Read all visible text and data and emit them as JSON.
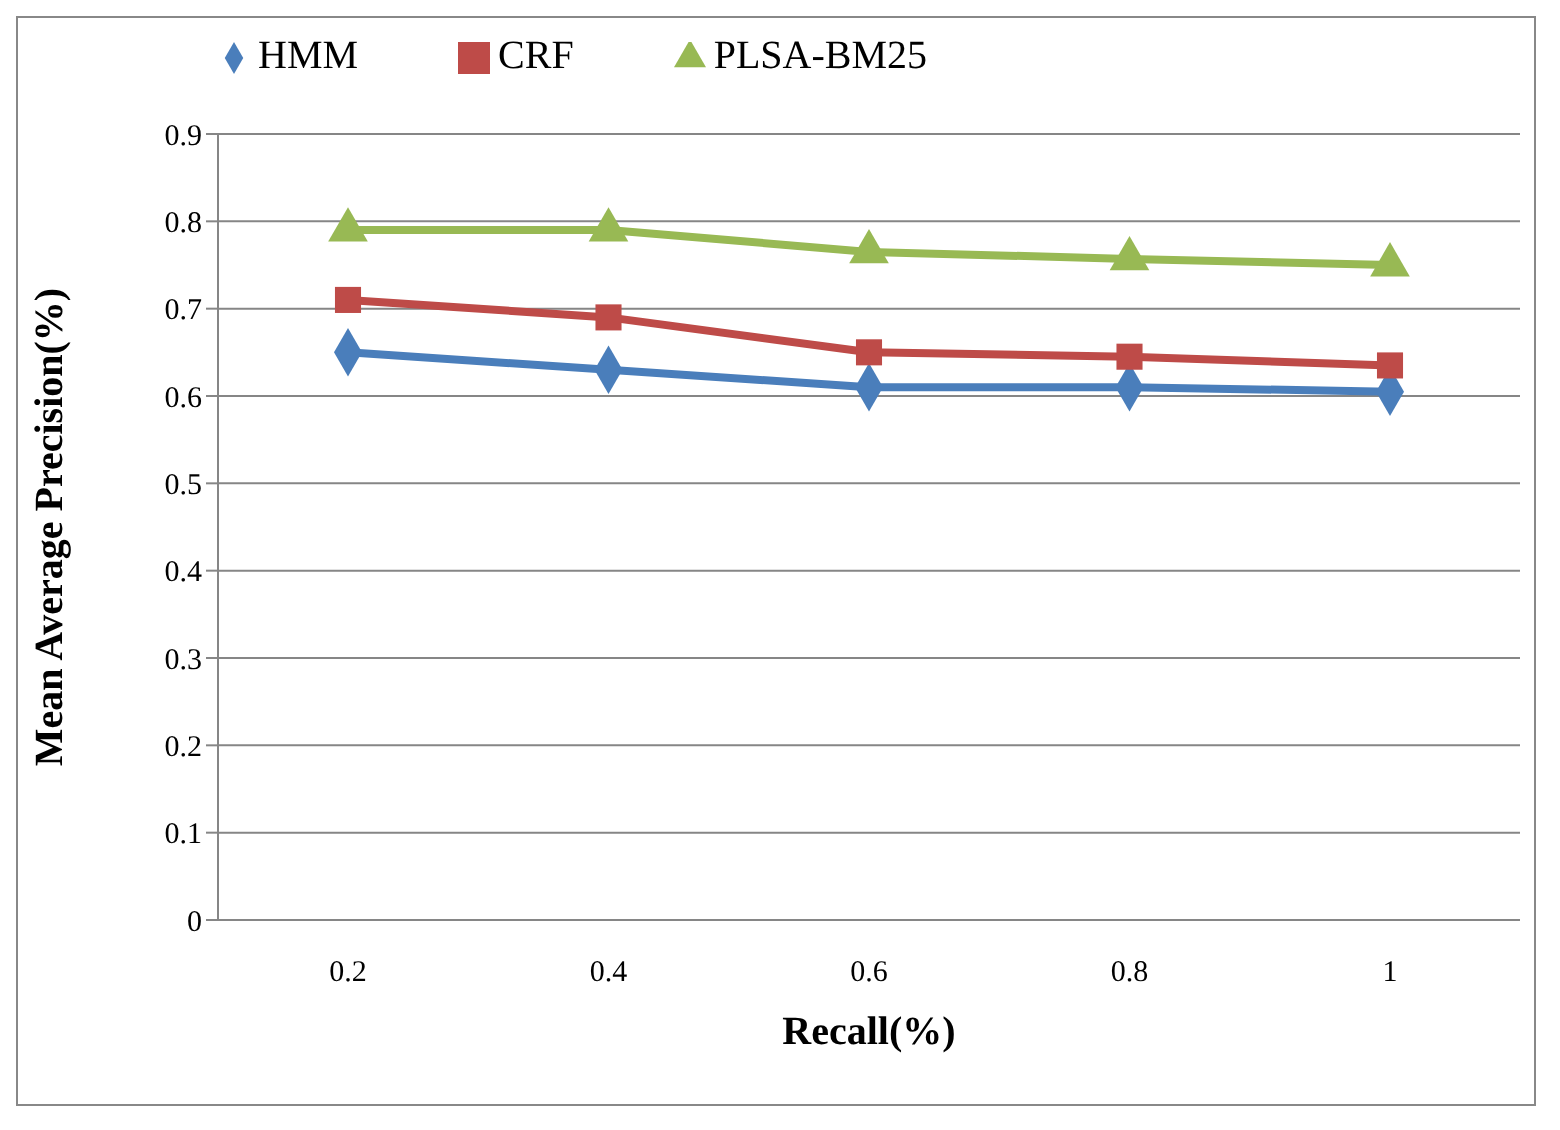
{
  "chart_data": {
    "type": "line",
    "xlabel": "Recall(%)",
    "ylabel": "Mean  Average Precision(%)",
    "categories": [
      "0.2",
      "0.4",
      "0.6",
      "0.8",
      "1"
    ],
    "series": [
      {
        "name": "HMM",
        "color": "#4a7ebb",
        "marker": "diamond",
        "values": [
          0.65,
          0.63,
          0.61,
          0.61,
          0.605
        ]
      },
      {
        "name": "CRF",
        "color": "#be4b48",
        "marker": "square",
        "values": [
          0.71,
          0.69,
          0.65,
          0.645,
          0.635
        ]
      },
      {
        "name": "PLSA-BM25",
        "color": "#98b954",
        "marker": "triangle",
        "values": [
          0.79,
          0.79,
          0.765,
          0.757,
          0.75
        ]
      }
    ],
    "ylim": [
      0,
      0.9
    ],
    "yticks": [
      0,
      0.1,
      0.2,
      0.3,
      0.4,
      0.5,
      0.6,
      0.7,
      0.8,
      0.9
    ],
    "grid": "y",
    "legend": "top",
    "line_style": "solid"
  }
}
